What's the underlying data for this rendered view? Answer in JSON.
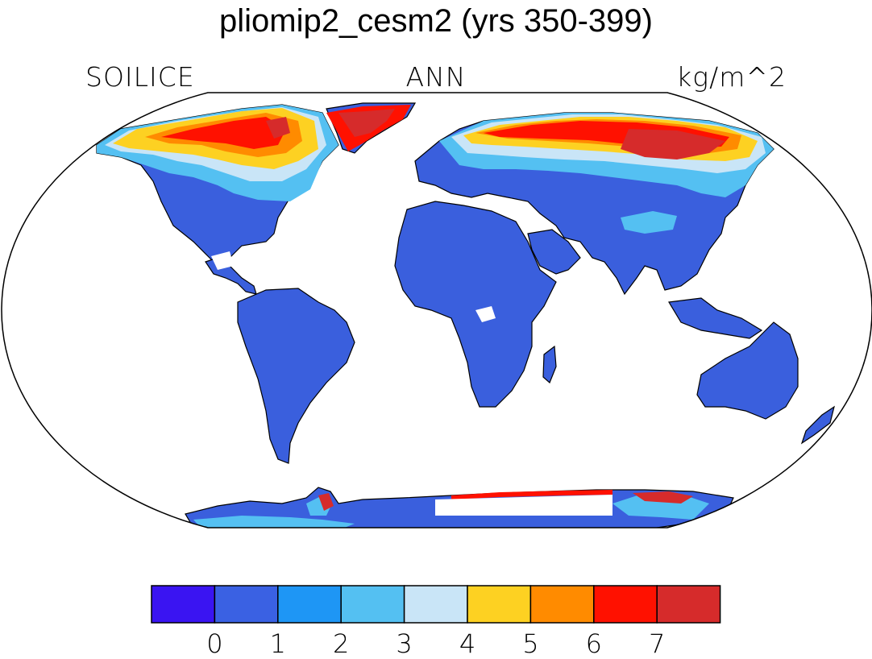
{
  "title": "pliomip2_cesm2 (yrs 350-399)",
  "subtitle_left": "SOILICE",
  "subtitle_center": "ANN",
  "subtitle_right": "kg/m^2",
  "colorbar": {
    "colors": [
      "#3a14f2",
      "#375ee0",
      "#3a61e3",
      "#1e96f5",
      "#54c0f2",
      "#c9e5f7",
      "#fdd122",
      "#ff8b00",
      "#ff1100",
      "#d62b2b"
    ],
    "tick_labels": [
      "0",
      "1",
      "2",
      "3",
      "4",
      "5",
      "6",
      "7"
    ]
  },
  "palette": {
    "land_base": "#3a5fdd",
    "cold_light": "#54c0f2",
    "cold_pale": "#c9e5f7",
    "yellow": "#fdd122",
    "orange": "#ff8b00",
    "red": "#ff1100",
    "dark_red": "#d62b2b",
    "coast": "#000000",
    "ocean": "#ffffff"
  }
}
